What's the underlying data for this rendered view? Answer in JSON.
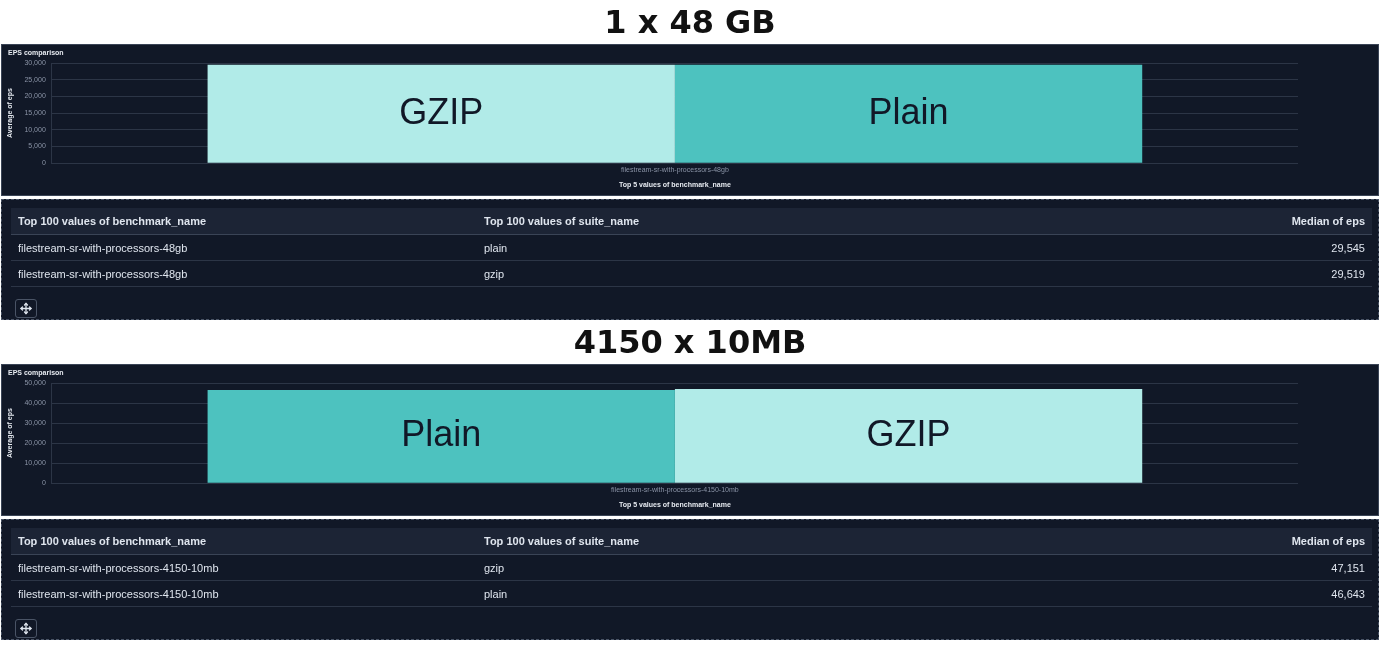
{
  "chart_data": [
    {
      "type": "bar",
      "title": "1 x 48 GB",
      "subtitle": "EPS comparison",
      "xlabel": "Top 5 values of benchmark_name",
      "ylabel": "Average of eps",
      "categories": [
        "filestream-sr-with-processors-48gb"
      ],
      "series": [
        {
          "name": "GZIP",
          "color": "#b1ebe8",
          "values": [
            29500
          ]
        },
        {
          "name": "Plain",
          "color": "#4dc2bf",
          "values": [
            29500
          ]
        }
      ],
      "ylim": [
        0,
        30000
      ],
      "yticks": [
        {
          "value": 0,
          "label": "0"
        },
        {
          "value": 5000,
          "label": "5,000"
        },
        {
          "value": 10000,
          "label": "10,000"
        },
        {
          "value": 15000,
          "label": "15,000"
        },
        {
          "value": 20000,
          "label": "20,000"
        },
        {
          "value": 25000,
          "label": "25,000"
        },
        {
          "value": 30000,
          "label": "30,000"
        }
      ],
      "grid": "y"
    },
    {
      "type": "other",
      "categories": [
        "Top 100 values of benchmark_name",
        "Top 100 values of suite_name",
        "Median of eps"
      ],
      "cell_labels": [
        [
          "filestream-sr-with-processors-48gb",
          "plain",
          "29,545"
        ],
        [
          "filestream-sr-with-processors-48gb",
          "gzip",
          "29,519"
        ]
      ]
    },
    {
      "type": "bar",
      "title": "4150 x 10MB",
      "subtitle": "EPS comparison",
      "xlabel": "Top 5 values of benchmark_name",
      "ylabel": "Average of eps",
      "categories": [
        "filestream-sr-with-processors-4150-10mb"
      ],
      "series": [
        {
          "name": "Plain",
          "color": "#4dc2bf",
          "values": [
            46500
          ]
        },
        {
          "name": "GZIP",
          "color": "#b1ebe8",
          "values": [
            47000
          ]
        }
      ],
      "ylim": [
        0,
        50000
      ],
      "yticks": [
        {
          "value": 0,
          "label": "0"
        },
        {
          "value": 10000,
          "label": "10,000"
        },
        {
          "value": 20000,
          "label": "20,000"
        },
        {
          "value": 30000,
          "label": "30,000"
        },
        {
          "value": 40000,
          "label": "40,000"
        },
        {
          "value": 50000,
          "label": "50,000"
        }
      ],
      "grid": "y"
    },
    {
      "type": "other",
      "categories": [
        "Top 100 values of benchmark_name",
        "Top 100 values of suite_name",
        "Median of eps"
      ],
      "cell_labels": [
        [
          "filestream-sr-with-processors-4150-10mb",
          "gzip",
          "47,151"
        ],
        [
          "filestream-sr-with-processors-4150-10mb",
          "plain",
          "46,643"
        ]
      ]
    }
  ]
}
